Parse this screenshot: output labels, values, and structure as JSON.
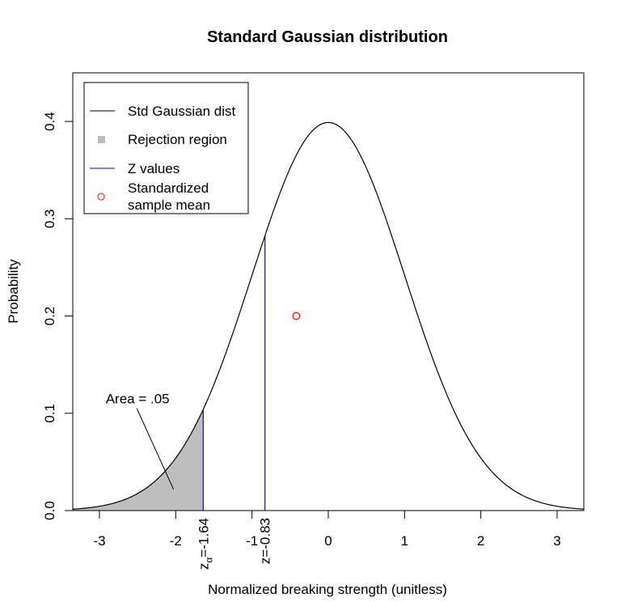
{
  "chart_data": {
    "type": "line",
    "title": "Standard Gaussian distribution",
    "xlabel": "Normalized breaking strength (unitless)",
    "ylabel": "Probability",
    "xlim": [
      -3.35,
      3.35
    ],
    "ylim": [
      0,
      0.45
    ],
    "xticks": [
      {
        "value": -3,
        "label": "-3"
      },
      {
        "value": -2,
        "label": "-2"
      },
      {
        "value": -1,
        "label": "-1"
      },
      {
        "value": 0,
        "label": "0"
      },
      {
        "value": 1,
        "label": "1"
      },
      {
        "value": 2,
        "label": "2"
      },
      {
        "value": 3,
        "label": "3"
      }
    ],
    "yticks": [
      {
        "value": 0.0,
        "label": "0.0"
      },
      {
        "value": 0.1,
        "label": "0.1"
      },
      {
        "value": 0.2,
        "label": "0.2"
      },
      {
        "value": 0.3,
        "label": "0.3"
      },
      {
        "value": 0.4,
        "label": "0.4"
      }
    ],
    "curve": {
      "name": "Std Gaussian dist",
      "mean": 0,
      "sd": 1,
      "color": "#000000"
    },
    "rejection_region": {
      "name": "Rejection region",
      "from": -3.35,
      "to": -1.64,
      "color": "#bebebe"
    },
    "z_lines": [
      {
        "x": -1.64,
        "label_main": "z",
        "label_sub": "α",
        "label_rest": "=-1.64",
        "color": "#0000ff"
      },
      {
        "x": -0.83,
        "label_main": "z=-0.83",
        "label_sub": "",
        "label_rest": "",
        "color": "#0000ff"
      }
    ],
    "z_values_name": "Z values",
    "sample_point": {
      "name_line1": "Standardized",
      "name_line2": "sample mean",
      "x": -0.42,
      "y": 0.2,
      "color": "#ff0000"
    },
    "annotation": {
      "text": "Area = .05",
      "x": -2.5,
      "y": 0.115,
      "arrow_to": {
        "x": -2.03,
        "y": 0.022
      }
    },
    "legend_position": "top-left",
    "grid": false
  }
}
